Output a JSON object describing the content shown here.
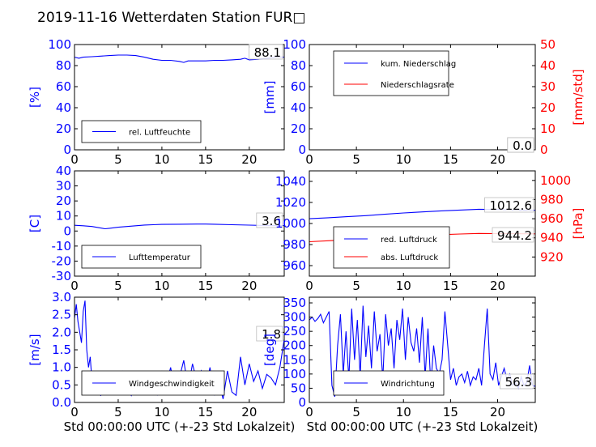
{
  "chart_title": "2019-11-16 Wetterdaten Station FUR□",
  "panels": [
    {
      "id": "humidity",
      "left_ylabel": "[%]",
      "left_color": "#0000ff",
      "left_ylim": [
        0,
        100
      ],
      "left_ticks": [
        0,
        20,
        40,
        60,
        80,
        100
      ],
      "x_ticks": [
        0,
        5,
        10,
        15,
        20
      ],
      "xlim": [
        0,
        24
      ],
      "legend": [
        {
          "label": "rel. Luftfeuchte",
          "color": "#0000ff"
        }
      ],
      "annotations": [
        {
          "text": "88.1"
        }
      ],
      "xlabel": ""
    },
    {
      "id": "precip",
      "left_ylabel": "[mm]",
      "left_color": "#0000ff",
      "left_ylim": [
        0,
        100
      ],
      "left_ticks": [
        0,
        20,
        40,
        60,
        80,
        100
      ],
      "right_ylabel": "[mm/std]",
      "right_color": "#ff0000",
      "right_ylim": [
        0,
        50
      ],
      "right_ticks": [
        0,
        10,
        20,
        30,
        40,
        50
      ],
      "x_ticks": [
        0,
        5,
        10,
        15,
        20
      ],
      "xlim": [
        0,
        24
      ],
      "legend": [
        {
          "label": "kum. Niederschlag",
          "color": "#0000ff"
        },
        {
          "label": "Niederschlagsrate",
          "color": "#ff0000"
        }
      ],
      "annotations": [
        {
          "text": "0.0"
        },
        {
          "text": "0.0"
        }
      ],
      "xlabel": ""
    },
    {
      "id": "temperature",
      "left_ylabel": "[C]",
      "left_color": "#0000ff",
      "left_ylim": [
        -30,
        40
      ],
      "left_ticks": [
        -30,
        -20,
        -10,
        0,
        10,
        20,
        30,
        40
      ],
      "x_ticks": [
        0,
        5,
        10,
        15,
        20
      ],
      "xlim": [
        0,
        24
      ],
      "legend": [
        {
          "label": "Lufttemperatur",
          "color": "#0000ff"
        }
      ],
      "annotations": [
        {
          "text": "3.6"
        }
      ],
      "xlabel": ""
    },
    {
      "id": "pressure",
      "left_ylabel": "",
      "left_color": "#0000ff",
      "left_ylim": [
        950,
        1050
      ],
      "left_ticks": [
        960,
        980,
        1000,
        1020,
        1040
      ],
      "right_ylabel": "[hPa]",
      "right_color": "#ff0000",
      "right_ylim": [
        900,
        1010
      ],
      "right_ticks": [
        920,
        940,
        960,
        980,
        1000
      ],
      "x_ticks": [
        0,
        5,
        10,
        15,
        20
      ],
      "xlim": [
        0,
        24
      ],
      "legend": [
        {
          "label": "red. Luftdruck",
          "color": "#0000ff"
        },
        {
          "label": "abs. Luftdruck",
          "color": "#ff0000"
        }
      ],
      "annotations": [
        {
          "text": "1012.6"
        },
        {
          "text": "944.2"
        }
      ],
      "xlabel": ""
    },
    {
      "id": "wind_speed",
      "left_ylabel": "[m/s]",
      "left_color": "#0000ff",
      "left_ylim": [
        0,
        3
      ],
      "left_ticks": [
        0.0,
        0.5,
        1.0,
        1.5,
        2.0,
        2.5,
        3.0
      ],
      "tick_decimals": 1,
      "x_ticks": [
        0,
        5,
        10,
        15,
        20
      ],
      "xlim": [
        0,
        24
      ],
      "legend": [
        {
          "label": "Windgeschwindigkeit",
          "color": "#0000ff"
        }
      ],
      "annotations": [
        {
          "text": "1.8"
        }
      ],
      "xlabel": "Std 00:00:00 UTC (+-23 Std Lokalzeit)"
    },
    {
      "id": "wind_dir",
      "left_ylabel": "[deg]",
      "left_color": "#0000ff",
      "left_ylim": [
        0,
        370
      ],
      "left_ticks": [
        0,
        50,
        100,
        150,
        200,
        250,
        300,
        350
      ],
      "x_ticks": [
        0,
        5,
        10,
        15,
        20
      ],
      "xlim": [
        0,
        24
      ],
      "legend": [
        {
          "label": "Windrichtung",
          "color": "#0000ff"
        }
      ],
      "annotations": [
        {
          "text": "56.3"
        }
      ],
      "xlabel": "Std 00:00:00 UTC (+-23 Std Lokalzeit)"
    }
  ],
  "chart_data": [
    {
      "type": "line",
      "panel": "humidity",
      "series": [
        {
          "name": "rel. Luftfeuchte",
          "axis": "left",
          "color": "#0000ff",
          "x": [
            0,
            0.5,
            1,
            2,
            3,
            4,
            5,
            6,
            7,
            8,
            9,
            10,
            11,
            12,
            12.5,
            13,
            14,
            15,
            16,
            17,
            18,
            19,
            19.5,
            20,
            21,
            22,
            23,
            24
          ],
          "y": [
            88,
            87,
            88,
            88.5,
            89,
            89.5,
            90,
            90,
            89.5,
            88,
            86,
            85,
            85,
            84,
            83,
            84.5,
            84.5,
            84.5,
            85,
            85,
            85.5,
            86,
            87,
            85.5,
            86,
            87,
            88,
            88.1
          ]
        }
      ]
    },
    {
      "type": "line",
      "panel": "precip",
      "series": [
        {
          "name": "kum. Niederschlag",
          "axis": "left",
          "color": "#0000ff",
          "x": [
            0,
            24
          ],
          "y": [
            0,
            0
          ]
        },
        {
          "name": "Niederschlagsrate",
          "axis": "right",
          "color": "#ff0000",
          "x": [
            0,
            24
          ],
          "y": [
            0,
            0
          ]
        }
      ]
    },
    {
      "type": "line",
      "panel": "temperature",
      "series": [
        {
          "name": "Lufttemperatur",
          "axis": "left",
          "color": "#0000ff",
          "x": [
            0,
            1,
            2,
            3,
            3.5,
            4,
            5,
            6,
            7,
            8,
            9,
            10,
            12,
            14,
            15,
            16,
            18,
            20,
            22,
            24
          ],
          "y": [
            3.8,
            3.5,
            3.0,
            2.0,
            1.5,
            1.8,
            2.5,
            3.0,
            3.5,
            4.0,
            4.2,
            4.4,
            4.5,
            4.6,
            4.6,
            4.5,
            4.2,
            3.9,
            3.6,
            3.6
          ]
        }
      ]
    },
    {
      "type": "line",
      "panel": "pressure",
      "series": [
        {
          "name": "red. Luftdruck",
          "axis": "left",
          "color": "#0000ff",
          "x": [
            0,
            2,
            4,
            6,
            8,
            10,
            12,
            14,
            16,
            18,
            20,
            22,
            24
          ],
          "y": [
            1004.5,
            1005.5,
            1006.5,
            1007.5,
            1008.8,
            1010,
            1011,
            1012,
            1012.8,
            1013.5,
            1013.3,
            1012.8,
            1012.6
          ]
        },
        {
          "name": "abs. Luftdruck",
          "axis": "right",
          "color": "#ff0000",
          "x": [
            0,
            2,
            4,
            6,
            8,
            10,
            12,
            14,
            16,
            18,
            20,
            22,
            24
          ],
          "y": [
            936,
            937,
            938,
            939,
            940.3,
            941.5,
            942.5,
            943.3,
            944,
            944.6,
            944.4,
            944.3,
            944.2
          ]
        }
      ]
    },
    {
      "type": "line",
      "panel": "wind_speed",
      "series": [
        {
          "name": "Windgeschwindigkeit",
          "axis": "left",
          "color": "#0000ff",
          "x": [
            0,
            0.2,
            0.4,
            0.6,
            0.8,
            1.0,
            1.2,
            1.4,
            1.6,
            1.8,
            2.0,
            2.2,
            2.5,
            3.0,
            3.5,
            4.0,
            4.5,
            5.0,
            5.5,
            6.0,
            6.5,
            7.0,
            7.5,
            8.0,
            8.5,
            9.0,
            9.5,
            10.0,
            10.5,
            11.0,
            11.5,
            12.0,
            12.5,
            13.0,
            13.5,
            14.0,
            14.5,
            15.0,
            15.5,
            16.0,
            16.5,
            17.0,
            17.5,
            18.0,
            18.5,
            19.0,
            19.5,
            20.0,
            20.5,
            21.0,
            21.5,
            22.0,
            22.5,
            23.0,
            23.5,
            24.0
          ],
          "y": [
            2.4,
            2.8,
            2.3,
            2.0,
            1.7,
            2.6,
            2.9,
            1.5,
            1.0,
            1.3,
            0.6,
            0.4,
            0.3,
            0.2,
            0.6,
            0.3,
            0.5,
            0.3,
            0.9,
            0.4,
            0.2,
            0.7,
            0.3,
            0.8,
            0.4,
            0.6,
            0.2,
            0.9,
            0.5,
            1.0,
            0.3,
            0.7,
            1.2,
            0.4,
            1.1,
            0.6,
            0.9,
            0.4,
            1.0,
            0.2,
            0.6,
            0.1,
            0.9,
            0.3,
            0.2,
            1.3,
            0.5,
            1.1,
            0.6,
            0.9,
            0.4,
            0.8,
            0.7,
            0.5,
            1.0,
            1.8
          ]
        }
      ]
    },
    {
      "type": "line",
      "panel": "wind_dir",
      "series": [
        {
          "name": "Windrichtung",
          "axis": "left",
          "color": "#0000ff",
          "x": [
            0,
            0.3,
            0.6,
            0.9,
            1.2,
            1.5,
            1.8,
            2.1,
            2.4,
            2.7,
            3.0,
            3.3,
            3.6,
            3.9,
            4.2,
            4.5,
            4.8,
            5.1,
            5.4,
            5.7,
            6.0,
            6.3,
            6.6,
            6.9,
            7.2,
            7.5,
            7.8,
            8.1,
            8.4,
            8.7,
            9.0,
            9.3,
            9.6,
            9.9,
            10.2,
            10.5,
            10.8,
            11.1,
            11.4,
            11.7,
            12.0,
            12.3,
            12.6,
            12.9,
            13.2,
            13.5,
            13.8,
            14.1,
            14.4,
            14.7,
            15.0,
            15.3,
            15.6,
            15.9,
            16.2,
            16.5,
            16.8,
            17.1,
            17.4,
            17.7,
            18.0,
            18.3,
            18.6,
            18.9,
            19.2,
            19.5,
            19.8,
            20.1,
            20.4,
            20.7,
            21.0,
            21.3,
            21.6,
            21.9,
            22.2,
            22.5,
            22.8,
            23.1,
            23.4,
            23.7,
            24.0
          ],
          "y": [
            290,
            300,
            285,
            295,
            310,
            280,
            300,
            320,
            60,
            20,
            200,
            310,
            100,
            250,
            80,
            330,
            150,
            290,
            90,
            340,
            160,
            270,
            120,
            320,
            180,
            240,
            80,
            310,
            200,
            260,
            120,
            290,
            220,
            330,
            150,
            300,
            210,
            180,
            260,
            140,
            300,
            90,
            260,
            60,
            200,
            120,
            100,
            150,
            320,
            200,
            80,
            120,
            60,
            90,
            100,
            70,
            110,
            60,
            90,
            80,
            120,
            60,
            200,
            330,
            100,
            80,
            140,
            60,
            90,
            120,
            80,
            100,
            60,
            70,
            50,
            90,
            60,
            70,
            130,
            60,
            56.3
          ]
        }
      ]
    }
  ]
}
